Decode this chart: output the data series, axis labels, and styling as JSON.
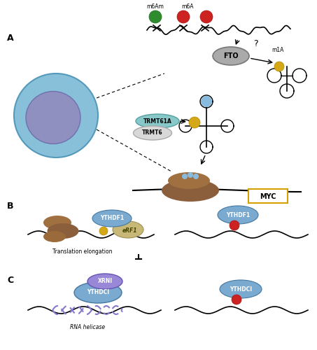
{
  "bg_color": "#ffffff",
  "label_A": "A",
  "label_B": "B",
  "label_C": "C",
  "m6Am_label": "m6Am",
  "m6A_label": "m6A",
  "m1A_label": "m1A",
  "FTO_label": "FTO",
  "TRMT61A_label": "TRMT61A",
  "TRMT6_label": "TRMT6",
  "MYC_label": "MYC",
  "YTHDF1_label": "YTHDF1",
  "eRF1_label": "eRF1",
  "trans_elong_label": "Translation elongation",
  "XRNI_label": "XRNI",
  "YTHDCI_label1": "YTHDCI",
  "YTHDCI_label2": "YTHDCI",
  "RNA_helicase_label": "RNA helicase",
  "color_green": "#2e8b2e",
  "color_red": "#cc2222",
  "color_blue_ball": "#88bbdd",
  "color_yellow": "#d4a817",
  "color_brown_dark": "#8B5E3C",
  "color_brown_mid": "#a07040",
  "color_gray_fto": "#999999",
  "color_purple": "#8878cc",
  "color_tan": "#c8b878",
  "color_blue_protein": "#7aaad0",
  "color_teal": "#88c8c8",
  "color_cell_outer": "#87c0d8",
  "color_cell_inner": "#9090c0",
  "color_cell_edge": "#5599bb"
}
